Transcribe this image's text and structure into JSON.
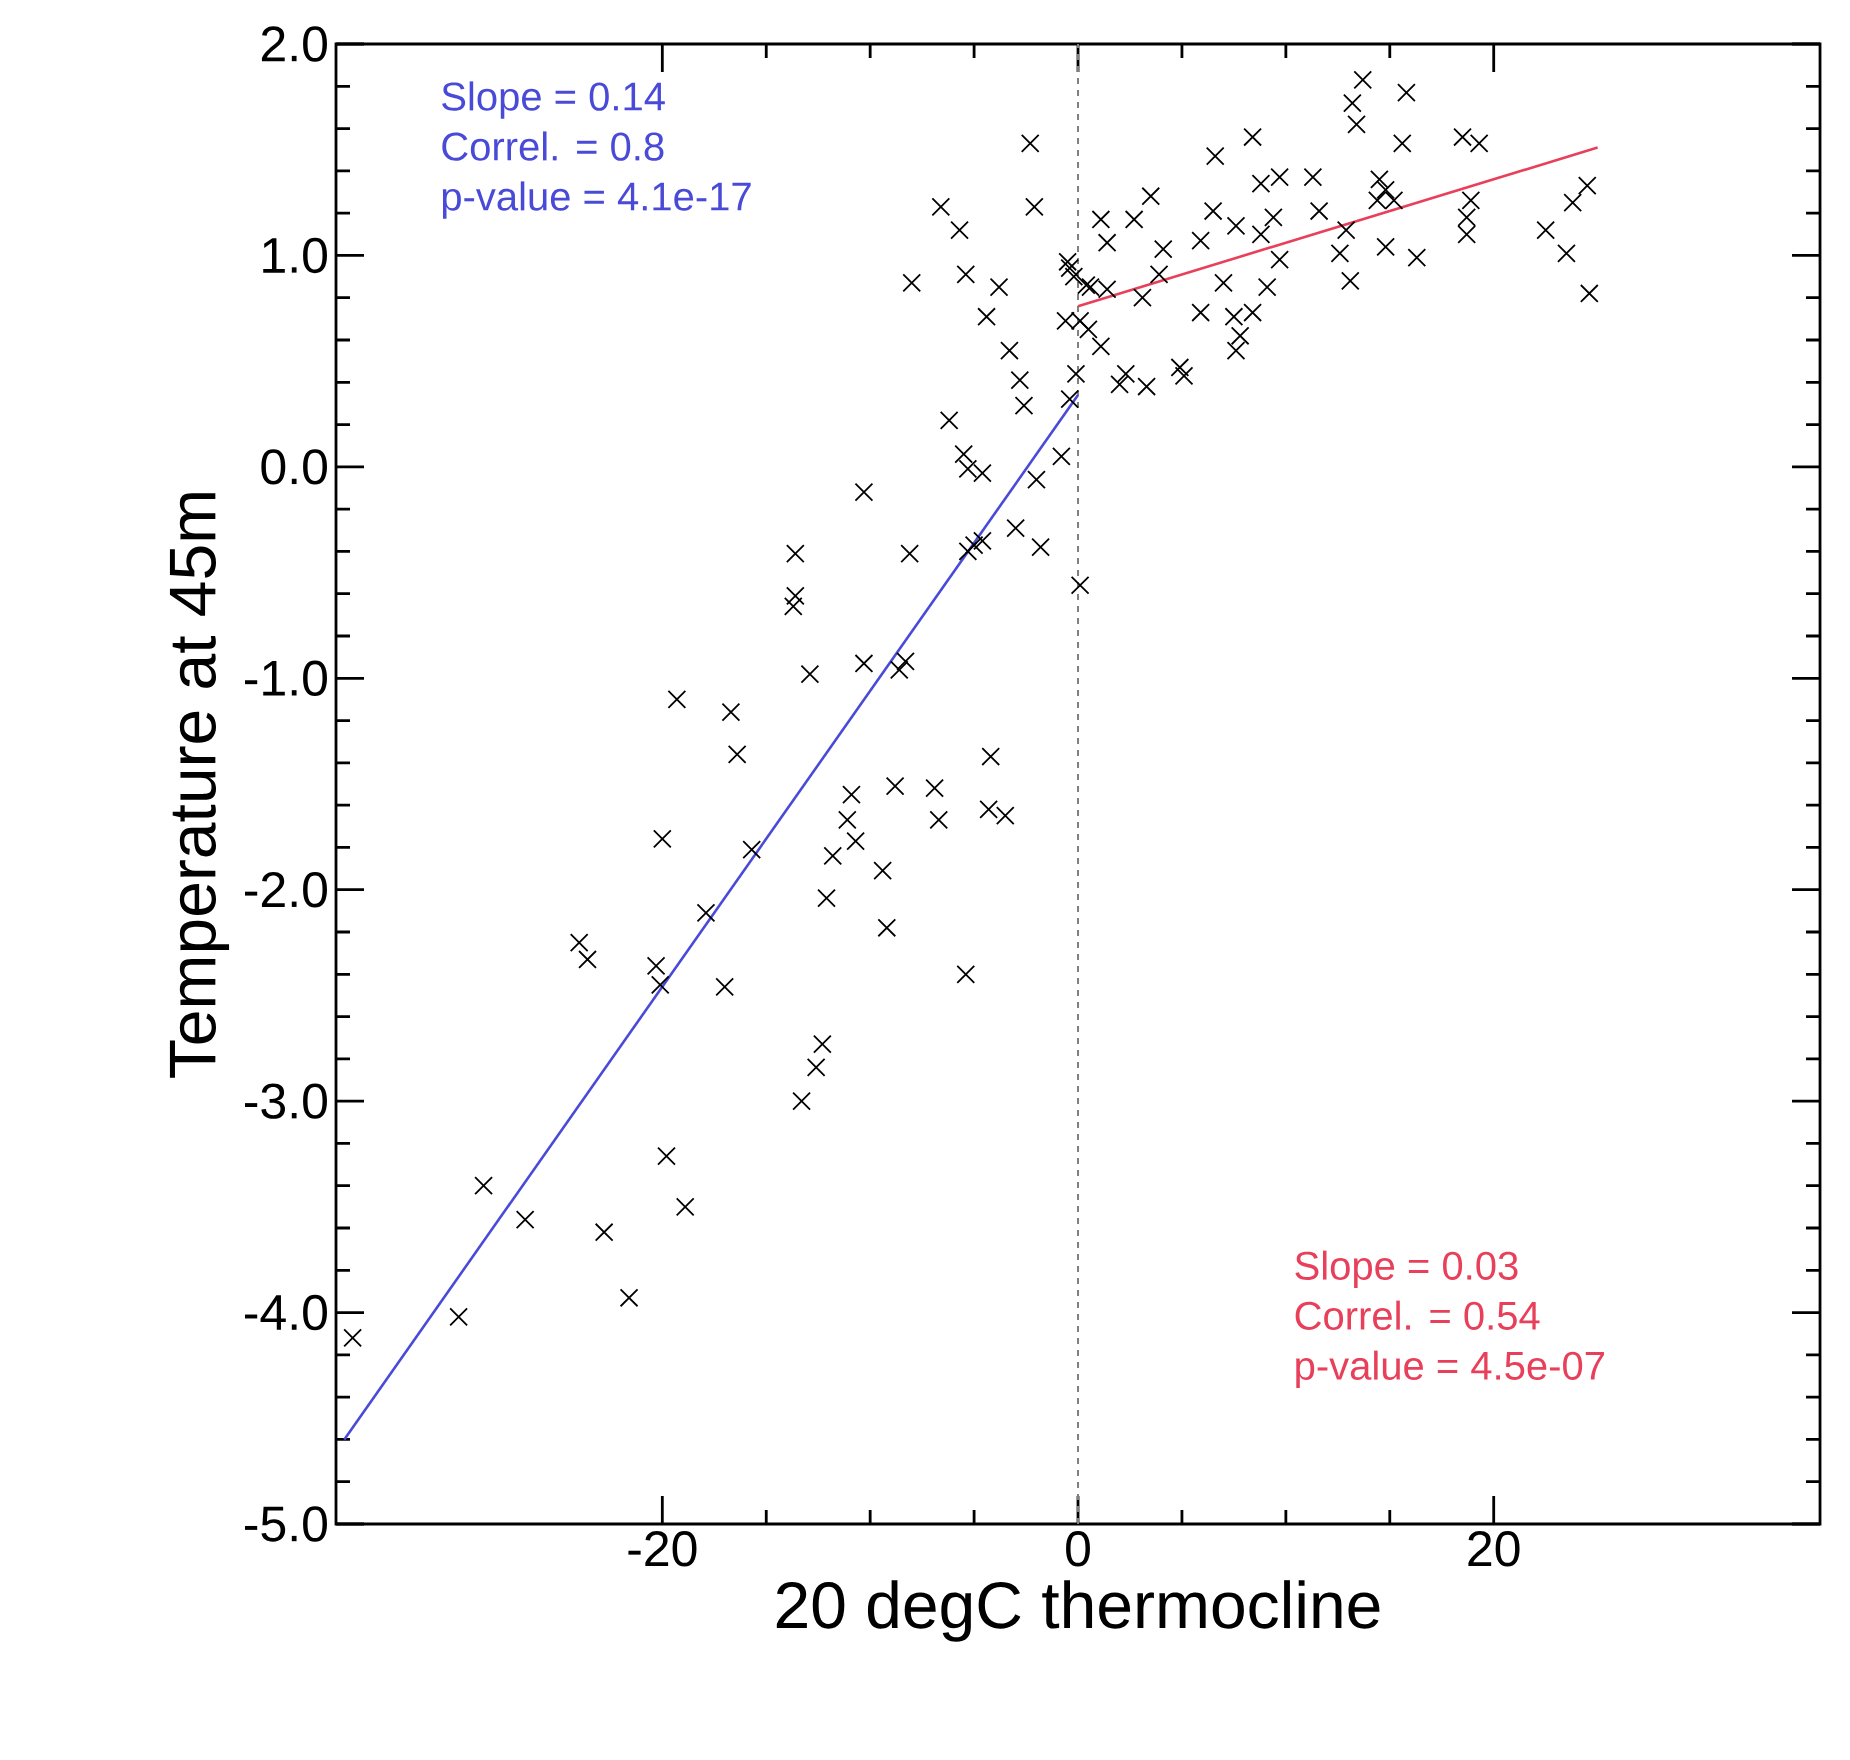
{
  "chart_data": {
    "type": "scatter",
    "xlabel": "20 degC thermocline",
    "ylabel": "Temperature at 45m",
    "xlim": [
      -35.7,
      35.7
    ],
    "ylim": [
      -5.0,
      2.0
    ],
    "xticks": [
      -20,
      0,
      20
    ],
    "yticks": [
      {
        "value": -5.0,
        "label": "-5.0"
      },
      {
        "value": -4.0,
        "label": "-4.0"
      },
      {
        "value": -3.0,
        "label": "-3.0"
      },
      {
        "value": -2.0,
        "label": "-2.0"
      },
      {
        "value": -1.0,
        "label": "-1.0"
      },
      {
        "value": 0.0,
        "label": "0.0"
      },
      {
        "value": 1.0,
        "label": "1.0"
      },
      {
        "value": 2.0,
        "label": "2.0"
      }
    ],
    "grid": false,
    "ref_lines": [
      {
        "axis": "x",
        "value": 0,
        "color": "#808080",
        "line_style": "dashed"
      }
    ],
    "annotations": [
      "Slope = 0.14",
      "Correl. = 0.8",
      "p-value = 4.1e-17",
      "Slope = 0.03",
      "Correl. = 0.54",
      "p-value = 4.5e-07"
    ],
    "series": [
      {
        "color": "#000000",
        "marker": "cross",
        "x": [
          -34.9,
          -29.8,
          -28.6,
          -26.6,
          -22.8,
          -21.6,
          -19.8,
          -18.9,
          -24.0,
          -23.6,
          -20.3,
          -20.1,
          -17.9,
          -17.0,
          -15.7,
          -20.0,
          -19.3,
          -16.7,
          -16.4,
          -13.3,
          -12.6,
          -12.3,
          -12.1,
          -11.8,
          -11.1,
          -10.9,
          -10.7,
          -13.7,
          -13.6,
          -13.6,
          -12.9,
          -10.3,
          -8.6,
          -8.3,
          -8.1,
          -10.3,
          -9.4,
          -9.2,
          -6.9,
          -6.7,
          -5.4,
          -4.3,
          -3.5,
          -4.2,
          -8.8,
          -6.2,
          -5.5,
          -5.3,
          -4.6,
          -5.0,
          -5.3,
          -4.6,
          -3.0,
          -1.8,
          -2.0,
          -0.8,
          0.1,
          -2.3,
          -6.6,
          -5.7,
          -8.0,
          -5.4,
          -3.8,
          -4.4,
          -3.3,
          -2.8,
          -2.6,
          -2.1,
          -0.5,
          -0.2,
          0.4,
          -0.6,
          0.5,
          -0.1,
          -0.4,
          13.7,
          13.2,
          13.4,
          15.8,
          6.6,
          8.4,
          3.5,
          2.7,
          1.1,
          1.4,
          -0.4,
          0.6,
          1.4,
          3.1,
          4.1,
          3.9,
          5.9,
          6.5,
          7.6,
          7.0,
          5.9,
          7.5,
          8.4,
          7.8,
          7.6,
          8.8,
          9.7,
          11.3,
          9.4,
          8.8,
          9.7,
          9.1,
          11.6,
          12.9,
          12.6,
          13.1,
          14.5,
          14.8,
          15.2,
          14.4,
          15.6,
          14.8,
          16.3,
          18.5,
          19.3,
          18.9,
          18.7,
          18.7,
          24.5,
          23.8,
          22.5,
          23.5,
          24.6,
          0.1,
          1.1,
          2.3,
          3.3,
          2.0,
          5.1,
          4.9
        ],
        "values": [
          -4.12,
          -4.02,
          -3.4,
          -3.56,
          -3.62,
          -3.93,
          -3.26,
          -3.5,
          -2.25,
          -2.33,
          -2.36,
          -2.45,
          -2.11,
          -2.46,
          -1.81,
          -1.76,
          -1.1,
          -1.16,
          -1.36,
          -3.0,
          -2.84,
          -2.73,
          -2.04,
          -1.84,
          -1.67,
          -1.55,
          -1.77,
          -0.66,
          -0.61,
          -0.41,
          -0.98,
          -0.93,
          -0.96,
          -0.92,
          -0.41,
          -0.12,
          -1.91,
          -2.18,
          -1.52,
          -1.67,
          -2.4,
          -1.62,
          -1.65,
          -1.37,
          -1.51,
          0.22,
          0.06,
          -0.01,
          -0.03,
          -0.37,
          -0.4,
          -0.35,
          -0.29,
          -0.38,
          -0.06,
          0.05,
          -0.56,
          1.53,
          1.23,
          1.12,
          0.87,
          0.91,
          0.85,
          0.71,
          0.55,
          0.41,
          0.29,
          1.23,
          0.97,
          0.9,
          0.86,
          0.69,
          0.65,
          0.44,
          0.32,
          1.83,
          1.72,
          1.62,
          1.77,
          1.47,
          1.56,
          1.28,
          1.17,
          1.17,
          1.06,
          0.94,
          0.85,
          0.84,
          0.8,
          1.03,
          0.91,
          1.07,
          1.21,
          1.14,
          0.87,
          0.73,
          0.71,
          0.73,
          0.62,
          0.55,
          1.34,
          1.37,
          1.37,
          1.18,
          1.1,
          0.98,
          0.85,
          1.21,
          1.12,
          1.01,
          0.88,
          1.36,
          1.31,
          1.26,
          1.26,
          1.53,
          1.04,
          0.99,
          1.56,
          1.53,
          1.26,
          1.18,
          1.1,
          1.33,
          1.25,
          1.12,
          1.01,
          0.82,
          0.69,
          0.57,
          0.44,
          0.38,
          0.39,
          0.43,
          0.47
        ]
      },
      {
        "type": "line",
        "color": "#4a4ad8",
        "x": [
          -35.3,
          0.0
        ],
        "values": [
          -4.6,
          0.34
        ]
      },
      {
        "type": "line",
        "color": "#e8405a",
        "x": [
          0.0,
          25.0
        ],
        "values": [
          0.76,
          1.51
        ]
      }
    ]
  }
}
